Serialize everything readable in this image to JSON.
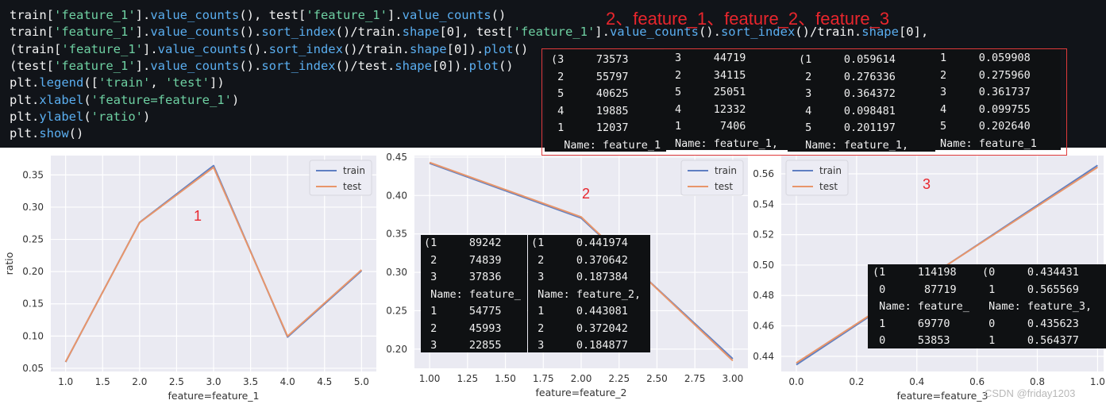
{
  "code_lines": [
    [
      {
        "t": "train[",
        "c": "kw"
      },
      {
        "t": "'feature_1'",
        "c": "str"
      },
      {
        "t": "].",
        "c": "kw"
      },
      {
        "t": "value_counts",
        "c": "fn"
      },
      {
        "t": "(), test[",
        "c": "kw"
      },
      {
        "t": "'feature_1'",
        "c": "str"
      },
      {
        "t": "].",
        "c": "kw"
      },
      {
        "t": "value_counts",
        "c": "fn"
      },
      {
        "t": "()",
        "c": "kw"
      }
    ],
    [
      {
        "t": "train[",
        "c": "kw"
      },
      {
        "t": "'feature_1'",
        "c": "str"
      },
      {
        "t": "].",
        "c": "kw"
      },
      {
        "t": "value_counts",
        "c": "fn"
      },
      {
        "t": "().",
        "c": "kw"
      },
      {
        "t": "sort_index",
        "c": "fn"
      },
      {
        "t": "()/train.",
        "c": "kw"
      },
      {
        "t": "shape",
        "c": "fn"
      },
      {
        "t": "[0], test[",
        "c": "kw"
      },
      {
        "t": "'feature_1'",
        "c": "str"
      },
      {
        "t": "].",
        "c": "kw"
      },
      {
        "t": "value_counts",
        "c": "fn"
      },
      {
        "t": "().",
        "c": "kw"
      },
      {
        "t": "sort_index",
        "c": "fn"
      },
      {
        "t": "()/train.",
        "c": "kw"
      },
      {
        "t": "shape",
        "c": "fn"
      },
      {
        "t": "[0],",
        "c": "kw"
      }
    ],
    [
      {
        "t": "(train[",
        "c": "kw"
      },
      {
        "t": "'feature_1'",
        "c": "str"
      },
      {
        "t": "].",
        "c": "kw"
      },
      {
        "t": "value_counts",
        "c": "fn"
      },
      {
        "t": "().",
        "c": "kw"
      },
      {
        "t": "sort_index",
        "c": "fn"
      },
      {
        "t": "()/train.",
        "c": "kw"
      },
      {
        "t": "shape",
        "c": "fn"
      },
      {
        "t": "[0]).",
        "c": "kw"
      },
      {
        "t": "plot",
        "c": "fn"
      },
      {
        "t": "()",
        "c": "kw"
      }
    ],
    [
      {
        "t": "(test[",
        "c": "kw"
      },
      {
        "t": "'feature_1'",
        "c": "str"
      },
      {
        "t": "].",
        "c": "kw"
      },
      {
        "t": "value_counts",
        "c": "fn"
      },
      {
        "t": "().",
        "c": "kw"
      },
      {
        "t": "sort_index",
        "c": "fn"
      },
      {
        "t": "()/test.",
        "c": "kw"
      },
      {
        "t": "shape",
        "c": "fn"
      },
      {
        "t": "[0]).",
        "c": "kw"
      },
      {
        "t": "plot",
        "c": "fn"
      },
      {
        "t": "()",
        "c": "kw"
      }
    ],
    [
      {
        "t": "plt.",
        "c": "kw"
      },
      {
        "t": "legend",
        "c": "fn"
      },
      {
        "t": "([",
        "c": "kw"
      },
      {
        "t": "'train'",
        "c": "str"
      },
      {
        "t": ", ",
        "c": "kw"
      },
      {
        "t": "'test'",
        "c": "str"
      },
      {
        "t": "])",
        "c": "kw"
      }
    ],
    [
      {
        "t": "plt.",
        "c": "kw"
      },
      {
        "t": "xlabel",
        "c": "fn"
      },
      {
        "t": "(",
        "c": "kw"
      },
      {
        "t": "'feature=feature_1'",
        "c": "str"
      },
      {
        "t": ")",
        "c": "kw"
      }
    ],
    [
      {
        "t": "plt.",
        "c": "kw"
      },
      {
        "t": "ylabel",
        "c": "fn"
      },
      {
        "t": "(",
        "c": "kw"
      },
      {
        "t": "'ratio'",
        "c": "str"
      },
      {
        "t": ")",
        "c": "kw"
      }
    ],
    [
      {
        "t": "plt.",
        "c": "kw"
      },
      {
        "t": "show",
        "c": "fn"
      },
      {
        "t": "()",
        "c": "kw"
      }
    ]
  ],
  "annotation_title": "2、feature_1、feature_2、feature_3",
  "output_boxes": [
    {
      "name": "f1-train-counts",
      "lines": [
        "(3     73573",
        " 2     55797",
        " 5     40625",
        " 4     19885",
        " 1     12037",
        "  Name: feature_1"
      ]
    },
    {
      "name": "f1-test-counts",
      "lines": [
        "3     44719",
        "2     34115",
        "5     25051",
        "4     12332",
        "1      7406",
        "Name: feature_1,"
      ]
    },
    {
      "name": "f1-train-ratio",
      "lines": [
        "(1     0.059614",
        " 2     0.276336",
        " 3     0.364372",
        " 4     0.098481",
        " 5     0.201197",
        " Name: feature_1,"
      ]
    },
    {
      "name": "f1-test-ratio",
      "lines": [
        "1     0.059908",
        "2     0.275960",
        "3     0.361737",
        "4     0.099755",
        "5     0.202640",
        "Name: feature_1"
      ]
    },
    {
      "name": "f2-counts",
      "lines": [
        "(1     89242",
        " 2     74839",
        " 3     37836",
        " Name: feature_",
        " 1     54775",
        " 2     45993",
        " 3     22855"
      ]
    },
    {
      "name": "f2-ratio",
      "lines": [
        "(1     0.441974",
        " 2     0.370642",
        " 3     0.187384",
        " Name: feature_2,",
        " 1     0.443081",
        " 2     0.372042",
        " 3     0.184877"
      ]
    },
    {
      "name": "f3-counts",
      "lines": [
        "(1     114198",
        " 0      87719",
        " Name: feature_",
        " 1     69770",
        " 0     53853"
      ]
    },
    {
      "name": "f3-ratio",
      "lines": [
        "(0     0.434431",
        " 1     0.565569",
        " Name: feature_3,",
        " 0     0.435623",
        " 1     0.564377"
      ]
    }
  ],
  "chart_labels": [
    "1",
    "2",
    "3"
  ],
  "credit": "CSDN @friday1203",
  "colors": {
    "train": "#5f7fc2",
    "test": "#e8956a",
    "plot_bg": "#eaeaf2",
    "grid": "#ffffff",
    "annotation": "#e8262d"
  },
  "chart_data": [
    {
      "type": "line",
      "xlabel": "feature=feature_1",
      "ylabel": "ratio",
      "x": [
        1,
        2,
        3,
        4,
        5
      ],
      "xlim": [
        0.8,
        5.2
      ],
      "ylim": [
        0.045,
        0.38
      ],
      "xticks": [
        "1.0",
        "1.5",
        "2.0",
        "2.5",
        "3.0",
        "3.5",
        "4.0",
        "4.5",
        "5.0"
      ],
      "yticks": [
        "0.05",
        "0.10",
        "0.15",
        "0.20",
        "0.25",
        "0.30",
        "0.35"
      ],
      "legend": "top-right",
      "grid": true,
      "series": [
        {
          "name": "train",
          "values": [
            0.059614,
            0.276336,
            0.364372,
            0.098481,
            0.201197
          ]
        },
        {
          "name": "test",
          "values": [
            0.059908,
            0.27596,
            0.361737,
            0.099755,
            0.20264
          ]
        }
      ]
    },
    {
      "type": "line",
      "xlabel": "feature=feature_2",
      "ylabel": "",
      "x": [
        1,
        2,
        3
      ],
      "xlim": [
        0.9,
        3.1
      ],
      "ylim": [
        0.175,
        0.452
      ],
      "xticks": [
        "1.00",
        "1.25",
        "1.50",
        "1.75",
        "2.00",
        "2.25",
        "2.50",
        "2.75",
        "3.00"
      ],
      "yticks": [
        "0.20",
        "0.25",
        "0.30",
        "0.35",
        "0.40",
        "0.45"
      ],
      "legend": "top-right",
      "grid": true,
      "series": [
        {
          "name": "train",
          "values": [
            0.441974,
            0.370642,
            0.187384
          ]
        },
        {
          "name": "test",
          "values": [
            0.443081,
            0.372042,
            0.184877
          ]
        }
      ]
    },
    {
      "type": "line",
      "xlabel": "feature=feature_3",
      "ylabel": "",
      "x": [
        0,
        1
      ],
      "xlim": [
        -0.05,
        1.02
      ],
      "ylim": [
        0.43,
        0.572
      ],
      "xticks": [
        "0.0",
        "0.2",
        "0.4",
        "0.6",
        "0.8",
        "1.0"
      ],
      "yticks": [
        "0.44",
        "0.46",
        "0.48",
        "0.50",
        "0.52",
        "0.54",
        "0.56"
      ],
      "legend": "top-left",
      "grid": true,
      "series": [
        {
          "name": "train",
          "values": [
            0.434431,
            0.565569
          ]
        },
        {
          "name": "test",
          "values": [
            0.435623,
            0.564377
          ]
        }
      ]
    }
  ]
}
